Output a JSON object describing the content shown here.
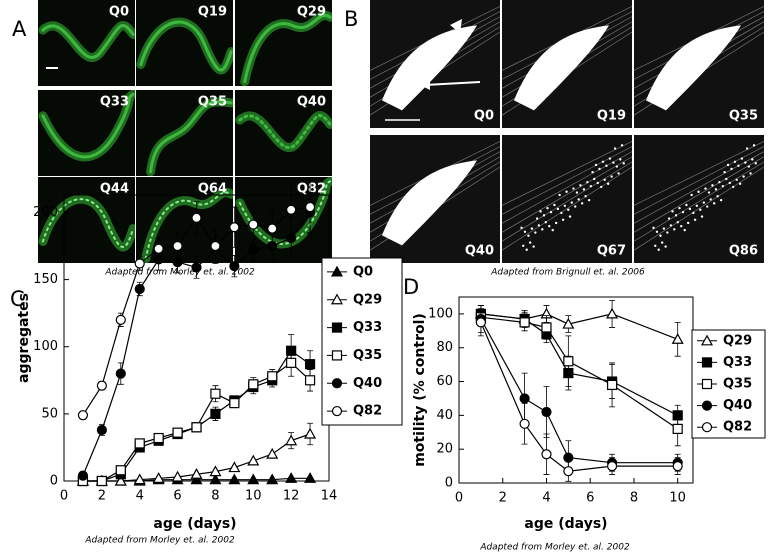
{
  "panels": {
    "A": {
      "letter": "A",
      "labels": [
        "Q0",
        "Q19",
        "Q29",
        "Q33",
        "Q35",
        "Q40",
        "Q44",
        "Q64",
        "Q82"
      ],
      "caption": "Adapted from Morley et. al. 2002"
    },
    "B": {
      "letter": "B",
      "labels": [
        "Q0",
        "Q19",
        "Q35",
        "Q40",
        "Q67",
        "Q86"
      ],
      "caption": "Adapted from Brignull et. al. 2006"
    }
  },
  "chart_data": [
    {
      "type": "line",
      "panel_letter": "C",
      "xlabel": "age (days)",
      "ylabel": "aggregates",
      "caption": "Adapted from Morley et. al. 2002",
      "x": [
        1,
        2,
        3,
        4,
        5,
        6,
        7,
        8,
        9,
        10,
        11,
        12,
        13
      ],
      "xlim": [
        0,
        14
      ],
      "xticks": [
        0,
        2,
        4,
        6,
        8,
        10,
        12,
        14
      ],
      "ylim": [
        0,
        213
      ],
      "yticks": [
        0,
        50,
        100,
        150,
        200
      ],
      "series": [
        {
          "name": "Q0",
          "color": "#000000",
          "marker": "triangle",
          "filled": true,
          "values": [
            0,
            0,
            0,
            0,
            1,
            1,
            1,
            1,
            1,
            1,
            1,
            2,
            2
          ]
        },
        {
          "name": "Q29",
          "color": "#000000",
          "marker": "triangle",
          "filled": false,
          "values": [
            0,
            0,
            0,
            1,
            2,
            3,
            5,
            7,
            10,
            15,
            20,
            30,
            35
          ],
          "errors": [
            0,
            0,
            0,
            0,
            0,
            0,
            0,
            0,
            0,
            0,
            0,
            6,
            8
          ]
        },
        {
          "name": "Q33",
          "color": "#000000",
          "marker": "square",
          "filled": true,
          "values": [
            0,
            0,
            5,
            25,
            30,
            35,
            40,
            50,
            60,
            70,
            75,
            97,
            87
          ],
          "errors": [
            0,
            0,
            0,
            0,
            0,
            0,
            0,
            5,
            0,
            5,
            5,
            12,
            10
          ]
        },
        {
          "name": "Q35",
          "color": "#000000",
          "marker": "square",
          "filled": false,
          "values": [
            0,
            0,
            8,
            28,
            32,
            36,
            40,
            65,
            58,
            72,
            78,
            88,
            75
          ],
          "errors": [
            0,
            0,
            0,
            0,
            0,
            0,
            0,
            6,
            0,
            5,
            5,
            10,
            8
          ]
        },
        {
          "name": "Q40",
          "color": "#000000",
          "marker": "circle",
          "filled": true,
          "values": [
            4,
            38,
            80,
            143,
            165,
            163,
            159,
            172,
            160,
            172,
            175,
            181,
            200
          ],
          "errors": [
            3,
            4,
            8,
            5,
            8,
            8,
            8,
            10,
            8,
            8,
            10,
            15,
            15
          ]
        },
        {
          "name": "Q82",
          "color": "#000000",
          "marker": "circle",
          "filled": false,
          "values": [
            49,
            71,
            120,
            162,
            173,
            175,
            196,
            175,
            189,
            191,
            188,
            202,
            204
          ],
          "errors": [
            3,
            3,
            5,
            5,
            8,
            10,
            12,
            12,
            15,
            15,
            15,
            20,
            20
          ]
        }
      ]
    },
    {
      "type": "line",
      "panel_letter": "D",
      "xlabel": "age (days)",
      "ylabel": "motility (% control)",
      "caption": "Adapted from Morley et. al. 2002",
      "x": [
        1,
        3,
        4,
        5,
        7,
        10
      ],
      "xlim": [
        0,
        10.7
      ],
      "xticks": [
        0,
        2,
        4,
        6,
        8,
        10
      ],
      "ylim": [
        0,
        110
      ],
      "yticks": [
        0,
        20,
        40,
        60,
        80,
        100
      ],
      "series": [
        {
          "name": "Q29",
          "color": "#000000",
          "marker": "triangle",
          "filled": false,
          "values": [
            100,
            97,
            100,
            94,
            100,
            85
          ],
          "errors": [
            5,
            5,
            5,
            5,
            8,
            10
          ]
        },
        {
          "name": "Q33",
          "color": "#000000",
          "marker": "square",
          "filled": true,
          "values": [
            100,
            97,
            88,
            65,
            60,
            40
          ],
          "errors": [
            5,
            4,
            5,
            10,
            10,
            6
          ]
        },
        {
          "name": "Q35",
          "color": "#000000",
          "marker": "square",
          "filled": false,
          "values": [
            98,
            95,
            92,
            72,
            58,
            32
          ],
          "errors": [
            5,
            5,
            7,
            15,
            13,
            10
          ]
        },
        {
          "name": "Q40",
          "color": "#000000",
          "marker": "circle",
          "filled": true,
          "values": [
            97,
            50,
            42,
            15,
            12,
            12
          ],
          "errors": [
            8,
            15,
            15,
            10,
            5,
            5
          ]
        },
        {
          "name": "Q82",
          "color": "#000000",
          "marker": "circle",
          "filled": false,
          "values": [
            95,
            35,
            17,
            7,
            10,
            10
          ],
          "errors": [
            8,
            12,
            12,
            6,
            5,
            5
          ]
        }
      ]
    }
  ]
}
